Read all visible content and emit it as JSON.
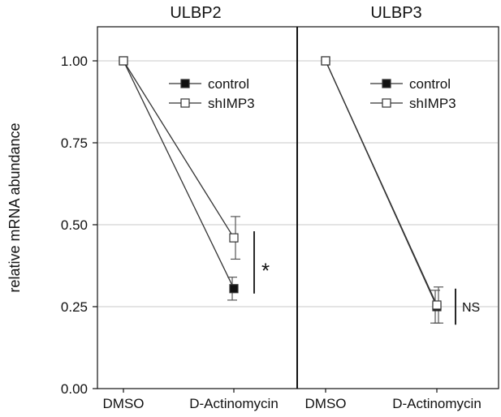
{
  "chart_data": {
    "type": "line",
    "ylabel": "relative mRNA abundance",
    "ylim": [
      0,
      1.0
    ],
    "yticks": [
      "0.00",
      "0.25",
      "0.50",
      "0.75",
      "1.00"
    ],
    "ytick_values": [
      0,
      0.25,
      0.5,
      0.75,
      1.0
    ],
    "grid": true,
    "panels": [
      {
        "title": "ULBP2",
        "categories": [
          "DMSO",
          "D-Actinomycin"
        ],
        "legend": [
          "control",
          "shIMP3"
        ],
        "legend_position": "top-right",
        "series": [
          {
            "name": "control",
            "marker": "filled-square",
            "values": [
              1.0,
              0.305
            ],
            "errors": [
              0,
              0.035
            ]
          },
          {
            "name": "shIMP3",
            "marker": "open-square",
            "values": [
              1.0,
              0.46
            ],
            "errors": [
              0,
              0.065
            ]
          }
        ],
        "significance": "*"
      },
      {
        "title": "ULBP3",
        "categories": [
          "DMSO",
          "D-Actinomycin"
        ],
        "legend": [
          "control",
          "shIMP3"
        ],
        "legend_position": "top-right",
        "series": [
          {
            "name": "control",
            "marker": "filled-square",
            "values": [
              1.0,
              0.25
            ],
            "errors": [
              0,
              0.05
            ]
          },
          {
            "name": "shIMP3",
            "marker": "open-square",
            "values": [
              1.0,
              0.255
            ],
            "errors": [
              0,
              0.055
            ]
          }
        ],
        "significance": "NS"
      }
    ]
  }
}
